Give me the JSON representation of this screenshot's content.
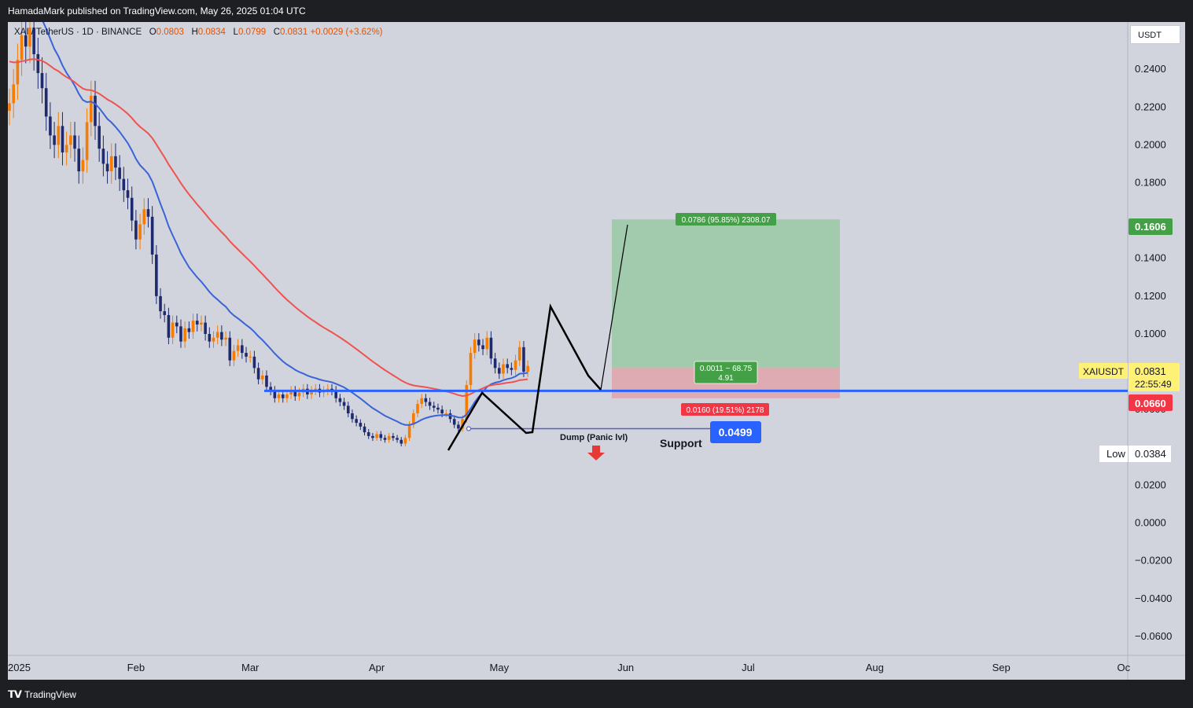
{
  "header": {
    "publisher_text": "HamadaMark published on TradingView.com, May 26, 2025 01:04 UTC"
  },
  "legend": {
    "symbol": "XAI / TetherUS · 1D · BINANCE",
    "o_label": "O",
    "o_value": "0.0803",
    "h_label": "H",
    "h_value": "0.0834",
    "l_label": "L",
    "l_value": "0.0799",
    "c_label": "C",
    "c_value": "0.0831",
    "change": "+0.0029 (+3.62%)"
  },
  "currency_button": "USDT",
  "footer": {
    "brand": "TradingView",
    "brand_icon": "tv-logo-icon"
  },
  "colors": {
    "background": "#d1d4dc",
    "ema_short": "#3a63d8",
    "ema_long": "#ef5350",
    "candle_up": "#f57c00",
    "candle_down": "#1f2a6e",
    "support_line": "#2962ff",
    "target_zone": "#8fc79a",
    "stop_zone": "#e39a9e",
    "price_tag": "#fff176",
    "target_tag": "#43a047",
    "stop_tag": "#f23645"
  },
  "chart_data": {
    "type": "candlestick",
    "title": "",
    "x_ticks": [
      "2025",
      "Feb",
      "Mar",
      "Apr",
      "May",
      "Jun",
      "Jul",
      "Aug",
      "Sep",
      "Oc"
    ],
    "y_ticks": [
      "0.2400",
      "0.2200",
      "0.2000",
      "0.1800",
      "0.1400",
      "0.1200",
      "0.1000",
      "0.0600",
      "0.0200",
      "0.0000",
      "−0.0200",
      "−0.0400",
      "−0.0600"
    ],
    "y_range": [
      -0.07,
      0.265
    ],
    "series": [
      {
        "name": "",
        "type": "candles",
        "start_date": "2025-01-01",
        "interval": "1D",
        "close": [
          0.222,
          0.232,
          0.245,
          0.258,
          0.252,
          0.262,
          0.248,
          0.238,
          0.23,
          0.215,
          0.205,
          0.2,
          0.21,
          0.196,
          0.2,
          0.205,
          0.198,
          0.186,
          0.192,
          0.212,
          0.226,
          0.21,
          0.198,
          0.19,
          0.186,
          0.194,
          0.188,
          0.182,
          0.176,
          0.172,
          0.16,
          0.15,
          0.158,
          0.166,
          0.162,
          0.142,
          0.12,
          0.112,
          0.11,
          0.098,
          0.106,
          0.104,
          0.096,
          0.103,
          0.101,
          0.107,
          0.105,
          0.106,
          0.1,
          0.096,
          0.098,
          0.101,
          0.097,
          0.098,
          0.086,
          0.091,
          0.094,
          0.09,
          0.088,
          0.088,
          0.082,
          0.076,
          0.078,
          0.072,
          0.07,
          0.066,
          0.068,
          0.066,
          0.068,
          0.07,
          0.067,
          0.069,
          0.071,
          0.068,
          0.07,
          0.071,
          0.069,
          0.07,
          0.071,
          0.07,
          0.066,
          0.064,
          0.062,
          0.058,
          0.055,
          0.053,
          0.051,
          0.048,
          0.046,
          0.045,
          0.047,
          0.045,
          0.044,
          0.046,
          0.045,
          0.044,
          0.042,
          0.045,
          0.052,
          0.058,
          0.063,
          0.066,
          0.064,
          0.062,
          0.061,
          0.06,
          0.058,
          0.058,
          0.055,
          0.052,
          0.05,
          0.055,
          0.073,
          0.09,
          0.097,
          0.094,
          0.092,
          0.098,
          0.087,
          0.082,
          0.079,
          0.084,
          0.082,
          0.081,
          0.086,
          0.093,
          0.08,
          0.0831
        ]
      },
      {
        "name": "",
        "type": "line"
      },
      {
        "name": "",
        "type": "line"
      }
    ],
    "annotations": {
      "support_level": "0.0699",
      "support_label": "Support",
      "dump_label": "Dump (Panic lvl)",
      "dump_level": "0.0499",
      "target_text": "0.0786 (95.85%) 2308.07",
      "center_text_1": "0.0011 ~ 68.75",
      "center_text_2": "4.91",
      "stop_text": "0.0160 (19.51%) 2178",
      "target_price": "0.1606",
      "current_symbol": "XAIUSDT",
      "current_price": "0.0831",
      "countdown": "22:55:49",
      "stop_price": "0.0660",
      "low_label": "Low",
      "low_value": "0.0384"
    }
  }
}
